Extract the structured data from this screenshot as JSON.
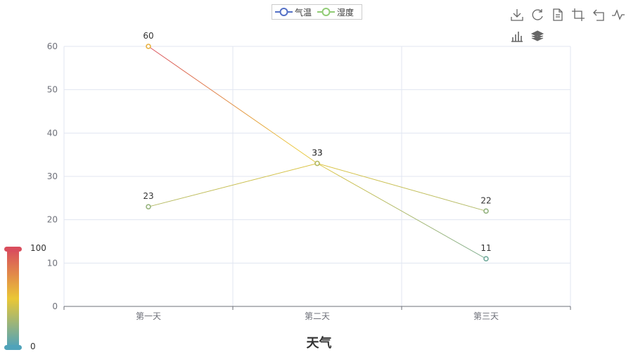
{
  "legend": [
    {
      "name": "气温",
      "color": "#5470c6"
    },
    {
      "name": "湿度",
      "color": "#91cc75"
    }
  ],
  "toolbox": [
    {
      "icon": "download-icon"
    },
    {
      "icon": "refresh-icon"
    },
    {
      "icon": "data-view-icon"
    },
    {
      "icon": "crop-icon"
    },
    {
      "icon": "undo-icon"
    },
    {
      "icon": "line-chart-icon"
    },
    {
      "icon": "bar-chart-icon"
    },
    {
      "icon": "stack-icon"
    }
  ],
  "visual_map": {
    "max_label": "100",
    "min_label": "0",
    "colors": [
      "#d94e5d",
      "#eac736",
      "#50a3ba"
    ]
  },
  "chart_data": {
    "type": "line",
    "categories": [
      "第一天",
      "第二天",
      "第三天"
    ],
    "xlabel": "天气",
    "ylabel": "",
    "ylim": [
      0,
      60
    ],
    "yticks": [
      "0",
      "10",
      "20",
      "30",
      "40",
      "50",
      "60"
    ],
    "grid": true,
    "legend_position": "top-center",
    "series": [
      {
        "name": "气温",
        "values": [
          60,
          33,
          11
        ],
        "color": "#5470c6"
      },
      {
        "name": "湿度",
        "values": [
          23,
          33,
          22
        ],
        "color": "#91cc75"
      }
    ]
  }
}
